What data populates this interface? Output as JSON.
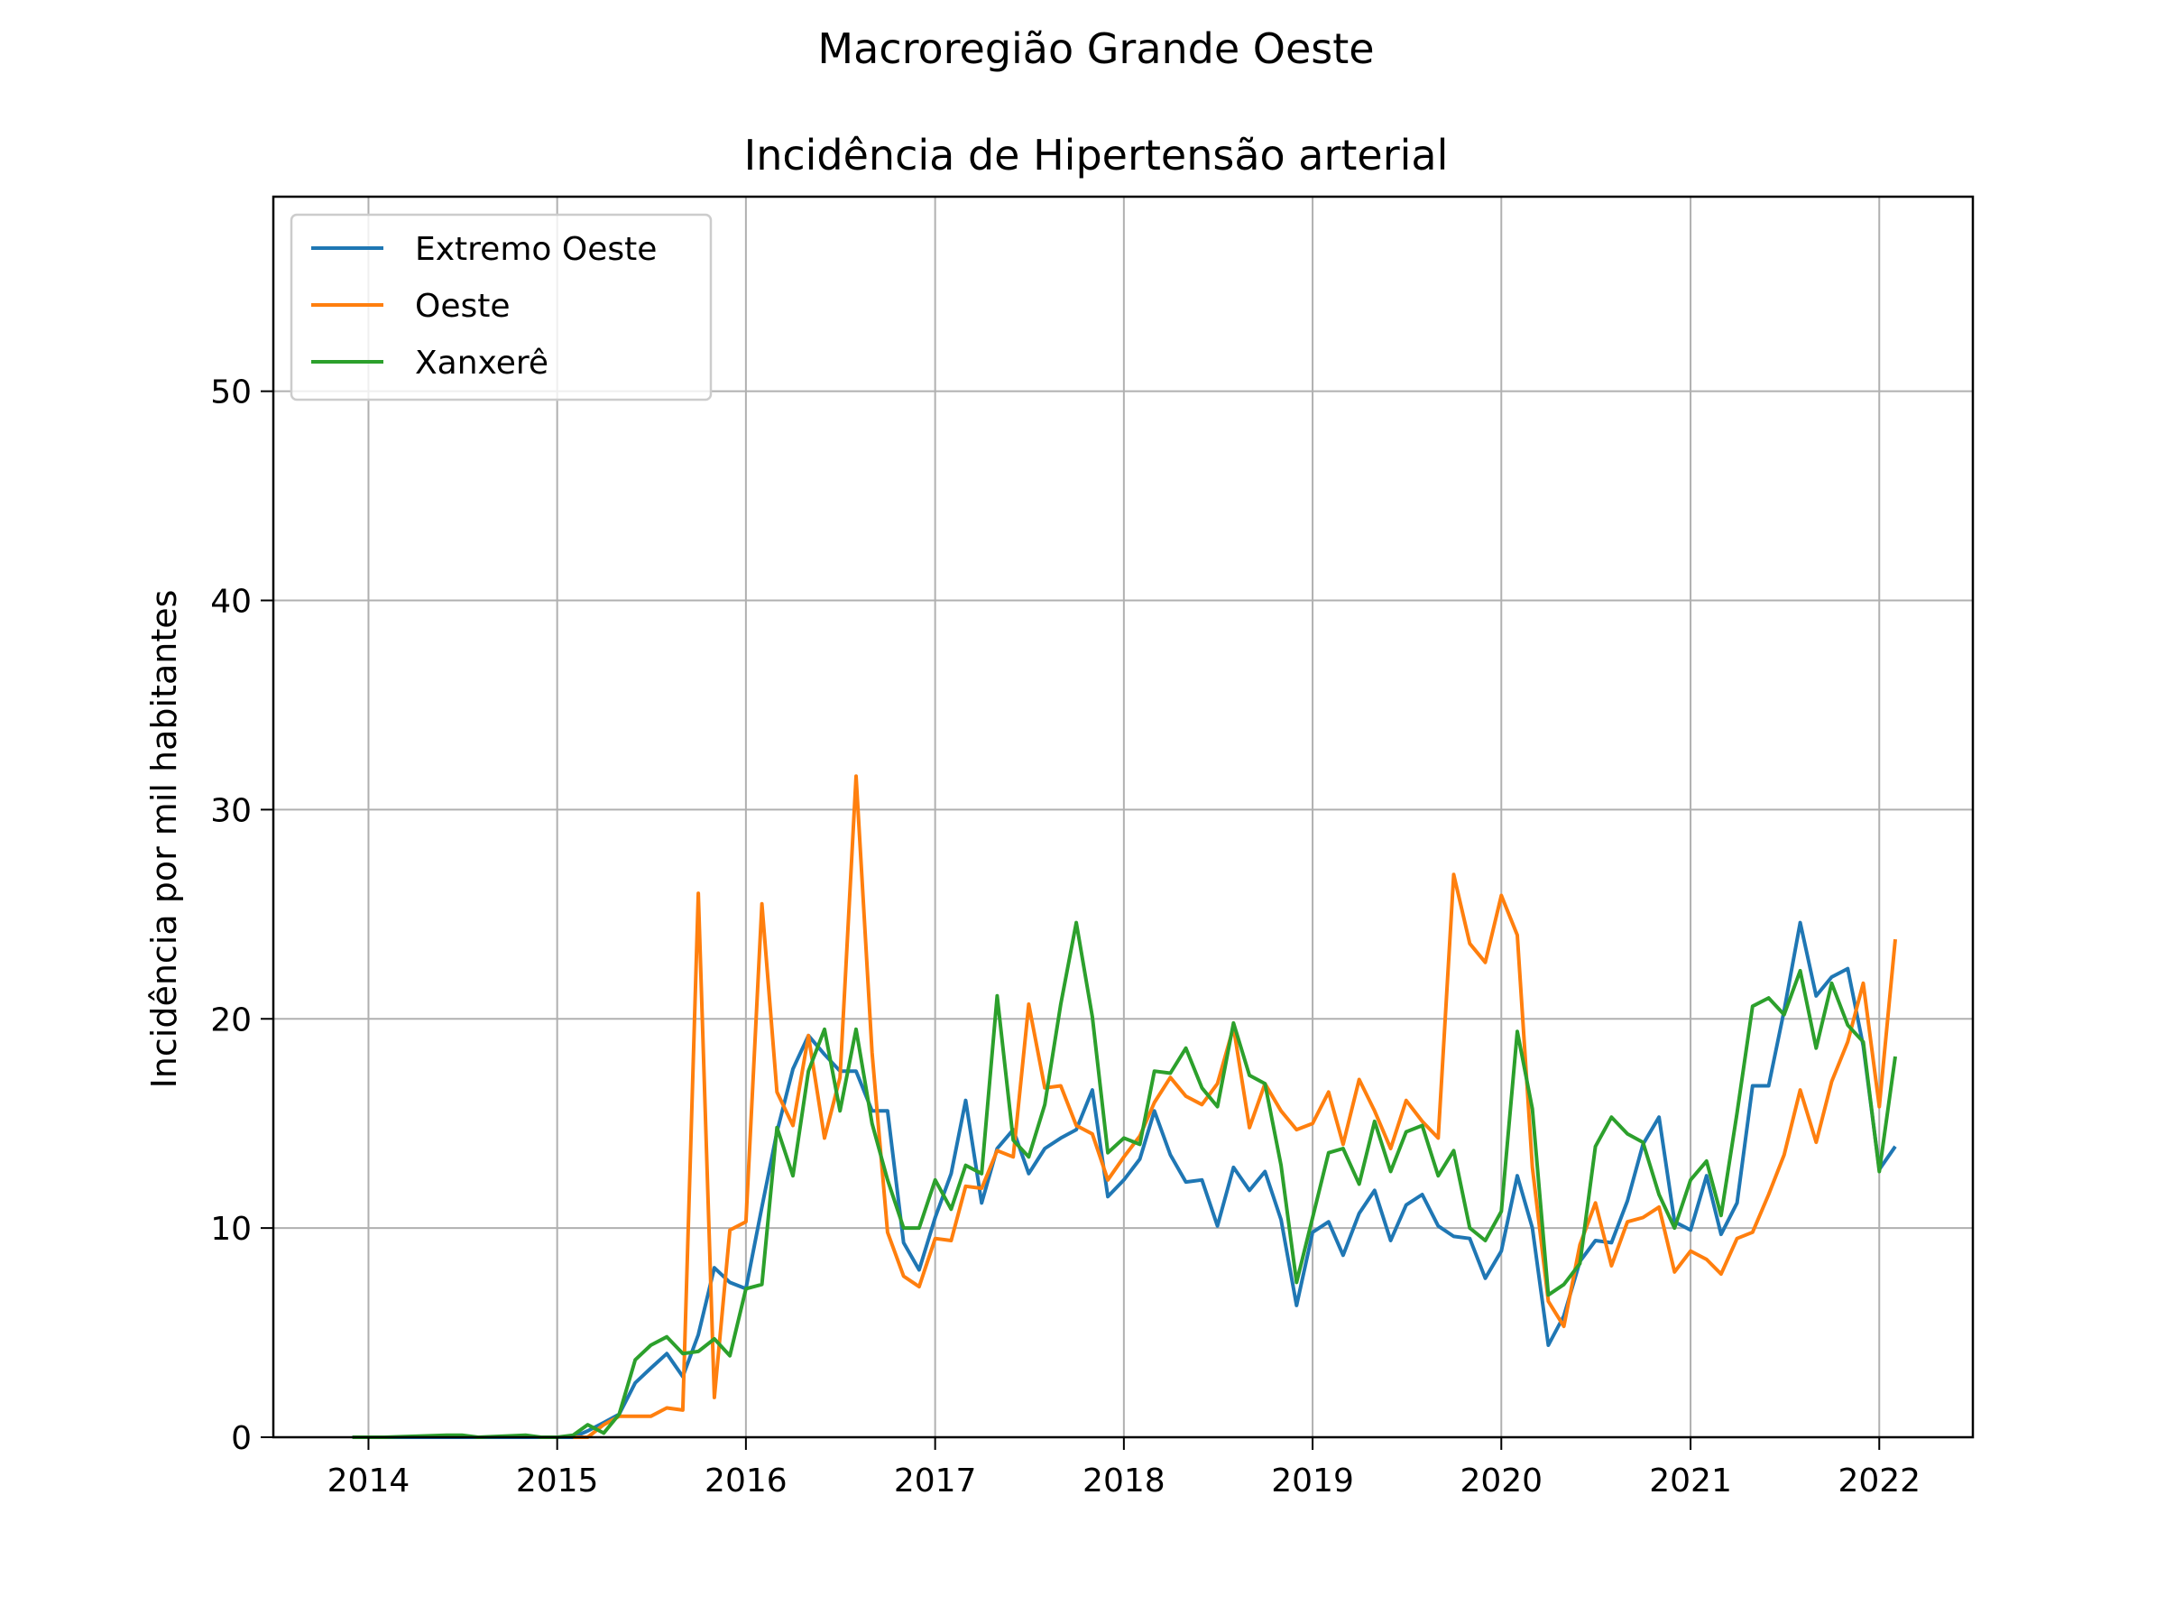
{
  "chart_data": {
    "type": "line",
    "suptitle": "Macroregião Grande Oeste",
    "title": "Incidência de Hipertensão arterial",
    "xlabel": "",
    "ylabel": "Incidência por mil habitantes",
    "xlim": [
      "2013-07-01",
      "2022-07-01"
    ],
    "ylim": [
      0,
      59.3
    ],
    "x_ticks": [
      "2014",
      "2015",
      "2016",
      "2017",
      "2018",
      "2019",
      "2020",
      "2021",
      "2022"
    ],
    "y_ticks": [
      "0",
      "10",
      "20",
      "30",
      "40",
      "50"
    ],
    "grid": true,
    "legend_position": "upper-left",
    "series": [
      {
        "name": "Extremo Oeste",
        "color": "#1f77b4",
        "points": [
          [
            "2013-12-01",
            0
          ],
          [
            "2014-01-01",
            0
          ],
          [
            "2014-02-01",
            0
          ],
          [
            "2014-06-01",
            0
          ],
          [
            "2014-07-01",
            0
          ],
          [
            "2014-08-01",
            0
          ],
          [
            "2014-11-01",
            0
          ],
          [
            "2014-12-01",
            0
          ],
          [
            "2015-01-01",
            0
          ],
          [
            "2015-02-01",
            0
          ],
          [
            "2015-03-01",
            0.3
          ],
          [
            "2015-04-01",
            0.7
          ],
          [
            "2015-05-01",
            1.1
          ],
          [
            "2015-06-01",
            2.6
          ],
          [
            "2015-07-01",
            3.3
          ],
          [
            "2015-08-01",
            4.0
          ],
          [
            "2015-09-01",
            2.9
          ],
          [
            "2015-10-01",
            4.9
          ],
          [
            "2015-11-01",
            8.1
          ],
          [
            "2015-12-01",
            7.4
          ],
          [
            "2016-01-01",
            7.1
          ],
          [
            "2016-02-01",
            11.0
          ],
          [
            "2016-03-01",
            14.6
          ],
          [
            "2016-04-01",
            17.6
          ],
          [
            "2016-05-01",
            19.2
          ],
          [
            "2016-06-01",
            18.3
          ],
          [
            "2016-07-01",
            17.5
          ],
          [
            "2016-08-01",
            17.5
          ],
          [
            "2016-09-01",
            15.6
          ],
          [
            "2016-10-01",
            15.6
          ],
          [
            "2016-11-01",
            9.3
          ],
          [
            "2016-12-01",
            8.0
          ],
          [
            "2017-01-01",
            10.5
          ],
          [
            "2017-02-01",
            12.6
          ],
          [
            "2017-03-01",
            16.1
          ],
          [
            "2017-04-01",
            11.2
          ],
          [
            "2017-05-01",
            13.8
          ],
          [
            "2017-06-01",
            14.7
          ],
          [
            "2017-07-01",
            12.6
          ],
          [
            "2017-08-01",
            13.8
          ],
          [
            "2017-09-01",
            14.3
          ],
          [
            "2017-10-01",
            14.7
          ],
          [
            "2017-11-01",
            16.6
          ],
          [
            "2017-12-01",
            11.5
          ],
          [
            "2018-01-01",
            12.3
          ],
          [
            "2018-02-01",
            13.3
          ],
          [
            "2018-03-01",
            15.6
          ],
          [
            "2018-04-01",
            13.5
          ],
          [
            "2018-05-01",
            12.2
          ],
          [
            "2018-06-01",
            12.3
          ],
          [
            "2018-07-01",
            10.1
          ],
          [
            "2018-08-01",
            12.9
          ],
          [
            "2018-09-01",
            11.8
          ],
          [
            "2018-10-01",
            12.7
          ],
          [
            "2018-11-01",
            10.4
          ],
          [
            "2018-12-01",
            6.3
          ],
          [
            "2019-01-01",
            9.8
          ],
          [
            "2019-02-01",
            10.3
          ],
          [
            "2019-03-01",
            8.7
          ],
          [
            "2019-04-01",
            10.7
          ],
          [
            "2019-05-01",
            11.8
          ],
          [
            "2019-06-01",
            9.4
          ],
          [
            "2019-07-01",
            11.1
          ],
          [
            "2019-08-01",
            11.6
          ],
          [
            "2019-09-01",
            10.1
          ],
          [
            "2019-10-01",
            9.6
          ],
          [
            "2019-11-01",
            9.5
          ],
          [
            "2019-12-01",
            7.6
          ],
          [
            "2020-01-01",
            8.9
          ],
          [
            "2020-02-01",
            12.5
          ],
          [
            "2020-03-01",
            10.0
          ],
          [
            "2020-04-01",
            4.4
          ],
          [
            "2020-05-01",
            5.8
          ],
          [
            "2020-06-01",
            8.4
          ],
          [
            "2020-07-01",
            9.4
          ],
          [
            "2020-08-01",
            9.3
          ],
          [
            "2020-09-01",
            11.3
          ],
          [
            "2020-10-01",
            14.0
          ],
          [
            "2020-11-01",
            15.3
          ],
          [
            "2020-12-01",
            10.3
          ],
          [
            "2021-01-01",
            9.9
          ],
          [
            "2021-02-01",
            12.5
          ],
          [
            "2021-03-01",
            9.7
          ],
          [
            "2021-04-01",
            11.2
          ],
          [
            "2021-05-01",
            16.8
          ],
          [
            "2021-06-01",
            16.8
          ],
          [
            "2021-07-01",
            20.4
          ],
          [
            "2021-08-01",
            24.6
          ],
          [
            "2021-09-01",
            21.1
          ],
          [
            "2021-10-01",
            22.0
          ],
          [
            "2021-11-01",
            22.4
          ],
          [
            "2021-12-01",
            18.7
          ],
          [
            "2022-01-01",
            12.8
          ],
          [
            "2022-02-01",
            13.9
          ]
        ]
      },
      {
        "name": "Oeste",
        "color": "#ff7f0e",
        "points": [
          [
            "2015-02-01",
            0
          ],
          [
            "2015-03-01",
            0
          ],
          [
            "2015-04-01",
            0.6
          ],
          [
            "2015-05-01",
            1.0
          ],
          [
            "2015-06-01",
            1.0
          ],
          [
            "2015-07-01",
            1.0
          ],
          [
            "2015-08-01",
            1.4
          ],
          [
            "2015-09-01",
            1.3
          ],
          [
            "2015-10-01",
            26.0
          ],
          [
            "2015-11-01",
            1.9
          ],
          [
            "2015-12-01",
            9.9
          ],
          [
            "2016-01-01",
            10.3
          ],
          [
            "2016-02-01",
            25.5
          ],
          [
            "2016-03-01",
            16.5
          ],
          [
            "2016-04-01",
            14.9
          ],
          [
            "2016-05-01",
            19.2
          ],
          [
            "2016-06-01",
            14.3
          ],
          [
            "2016-07-01",
            17.2
          ],
          [
            "2016-08-01",
            31.6
          ],
          [
            "2016-09-01",
            18.4
          ],
          [
            "2016-10-01",
            9.8
          ],
          [
            "2016-11-01",
            7.7
          ],
          [
            "2016-12-01",
            7.2
          ],
          [
            "2017-01-01",
            9.5
          ],
          [
            "2017-02-01",
            9.4
          ],
          [
            "2017-03-01",
            12.0
          ],
          [
            "2017-04-01",
            11.9
          ],
          [
            "2017-05-01",
            13.7
          ],
          [
            "2017-06-01",
            13.4
          ],
          [
            "2017-07-01",
            20.7
          ],
          [
            "2017-08-01",
            16.7
          ],
          [
            "2017-09-01",
            16.8
          ],
          [
            "2017-10-01",
            14.9
          ],
          [
            "2017-11-01",
            14.5
          ],
          [
            "2017-12-01",
            12.3
          ],
          [
            "2018-01-01",
            13.4
          ],
          [
            "2018-02-01",
            14.4
          ],
          [
            "2018-03-01",
            16.0
          ],
          [
            "2018-04-01",
            17.2
          ],
          [
            "2018-05-01",
            16.3
          ],
          [
            "2018-06-01",
            15.9
          ],
          [
            "2018-07-01",
            16.9
          ],
          [
            "2018-08-01",
            19.6
          ],
          [
            "2018-09-01",
            14.8
          ],
          [
            "2018-10-01",
            16.9
          ],
          [
            "2018-11-01",
            15.6
          ],
          [
            "2018-12-01",
            14.7
          ],
          [
            "2019-01-01",
            15.0
          ],
          [
            "2019-02-01",
            16.5
          ],
          [
            "2019-03-01",
            14.0
          ],
          [
            "2019-04-01",
            17.1
          ],
          [
            "2019-05-01",
            15.6
          ],
          [
            "2019-06-01",
            13.8
          ],
          [
            "2019-07-01",
            16.1
          ],
          [
            "2019-08-01",
            15.1
          ],
          [
            "2019-09-01",
            14.3
          ],
          [
            "2019-10-01",
            26.9
          ],
          [
            "2019-11-01",
            23.6
          ],
          [
            "2019-12-01",
            22.7
          ],
          [
            "2020-01-01",
            25.9
          ],
          [
            "2020-02-01",
            24.0
          ],
          [
            "2020-03-01",
            12.9
          ],
          [
            "2020-04-01",
            6.5
          ],
          [
            "2020-05-01",
            5.3
          ],
          [
            "2020-06-01",
            9.2
          ],
          [
            "2020-07-01",
            11.2
          ],
          [
            "2020-08-01",
            8.2
          ],
          [
            "2020-09-01",
            10.3
          ],
          [
            "2020-10-01",
            10.5
          ],
          [
            "2020-11-01",
            11.0
          ],
          [
            "2020-12-01",
            7.9
          ],
          [
            "2021-01-01",
            8.9
          ],
          [
            "2021-02-01",
            8.5
          ],
          [
            "2021-03-01",
            7.8
          ],
          [
            "2021-04-01",
            9.5
          ],
          [
            "2021-05-01",
            9.8
          ],
          [
            "2021-06-01",
            11.6
          ],
          [
            "2021-07-01",
            13.5
          ],
          [
            "2021-08-01",
            16.6
          ],
          [
            "2021-09-01",
            14.1
          ],
          [
            "2021-10-01",
            17.0
          ],
          [
            "2021-11-01",
            18.9
          ],
          [
            "2021-12-01",
            21.7
          ],
          [
            "2022-01-01",
            15.8
          ],
          [
            "2022-02-01",
            23.8
          ]
        ]
      },
      {
        "name": "Xanxerê",
        "color": "#2ca02c",
        "points": [
          [
            "2013-12-01",
            0
          ],
          [
            "2014-01-01",
            0
          ],
          [
            "2014-02-01",
            0
          ],
          [
            "2014-06-01",
            0.1
          ],
          [
            "2014-07-01",
            0.1
          ],
          [
            "2014-08-01",
            0
          ],
          [
            "2014-11-01",
            0.1
          ],
          [
            "2014-12-01",
            0
          ],
          [
            "2015-01-01",
            0
          ],
          [
            "2015-02-01",
            0.1
          ],
          [
            "2015-03-01",
            0.6
          ],
          [
            "2015-04-01",
            0.2
          ],
          [
            "2015-05-01",
            1.1
          ],
          [
            "2015-06-01",
            3.7
          ],
          [
            "2015-07-01",
            4.4
          ],
          [
            "2015-08-01",
            4.8
          ],
          [
            "2015-09-01",
            4.0
          ],
          [
            "2015-10-01",
            4.1
          ],
          [
            "2015-11-01",
            4.7
          ],
          [
            "2015-12-01",
            3.9
          ],
          [
            "2016-01-01",
            7.1
          ],
          [
            "2016-02-01",
            7.3
          ],
          [
            "2016-03-01",
            14.8
          ],
          [
            "2016-04-01",
            12.5
          ],
          [
            "2016-05-01",
            17.5
          ],
          [
            "2016-06-01",
            19.5
          ],
          [
            "2016-07-01",
            15.6
          ],
          [
            "2016-08-01",
            19.5
          ],
          [
            "2016-09-01",
            15.0
          ],
          [
            "2016-10-01",
            12.3
          ],
          [
            "2016-11-01",
            10.0
          ],
          [
            "2016-12-01",
            10.0
          ],
          [
            "2017-01-01",
            12.3
          ],
          [
            "2017-02-01",
            10.9
          ],
          [
            "2017-03-01",
            13.0
          ],
          [
            "2017-04-01",
            12.6
          ],
          [
            "2017-05-01",
            21.1
          ],
          [
            "2017-06-01",
            14.2
          ],
          [
            "2017-07-01",
            13.4
          ],
          [
            "2017-08-01",
            15.9
          ],
          [
            "2017-09-01",
            20.7
          ],
          [
            "2017-10-01",
            24.6
          ],
          [
            "2017-11-01",
            20.1
          ],
          [
            "2017-12-01",
            13.6
          ],
          [
            "2018-01-01",
            14.3
          ],
          [
            "2018-02-01",
            14.0
          ],
          [
            "2018-03-01",
            17.5
          ],
          [
            "2018-04-01",
            17.4
          ],
          [
            "2018-05-01",
            18.6
          ],
          [
            "2018-06-01",
            16.7
          ],
          [
            "2018-07-01",
            15.8
          ],
          [
            "2018-08-01",
            19.8
          ],
          [
            "2018-09-01",
            17.3
          ],
          [
            "2018-10-01",
            16.9
          ],
          [
            "2018-11-01",
            13.0
          ],
          [
            "2018-12-01",
            7.4
          ],
          [
            "2019-01-01",
            10.5
          ],
          [
            "2019-02-01",
            13.6
          ],
          [
            "2019-03-01",
            13.8
          ],
          [
            "2019-04-01",
            12.1
          ],
          [
            "2019-05-01",
            15.1
          ],
          [
            "2019-06-01",
            12.7
          ],
          [
            "2019-07-01",
            14.6
          ],
          [
            "2019-08-01",
            14.9
          ],
          [
            "2019-09-01",
            12.5
          ],
          [
            "2019-10-01",
            13.7
          ],
          [
            "2019-11-01",
            10.0
          ],
          [
            "2019-12-01",
            9.4
          ],
          [
            "2020-01-01",
            10.8
          ],
          [
            "2020-02-01",
            19.4
          ],
          [
            "2020-03-01",
            15.7
          ],
          [
            "2020-04-01",
            6.8
          ],
          [
            "2020-05-01",
            7.3
          ],
          [
            "2020-06-01",
            8.3
          ],
          [
            "2020-07-01",
            13.9
          ],
          [
            "2020-08-01",
            15.3
          ],
          [
            "2020-09-01",
            14.5
          ],
          [
            "2020-10-01",
            14.1
          ],
          [
            "2020-11-01",
            11.6
          ],
          [
            "2020-12-01",
            10.0
          ],
          [
            "2021-01-01",
            12.3
          ],
          [
            "2021-02-01",
            13.2
          ],
          [
            "2021-03-01",
            10.6
          ],
          [
            "2021-04-01",
            15.5
          ],
          [
            "2021-05-01",
            20.6
          ],
          [
            "2021-06-01",
            21.0
          ],
          [
            "2021-07-01",
            20.2
          ],
          [
            "2021-08-01",
            22.3
          ],
          [
            "2021-09-01",
            18.6
          ],
          [
            "2021-10-01",
            21.7
          ],
          [
            "2021-11-01",
            19.7
          ],
          [
            "2021-12-01",
            18.9
          ],
          [
            "2022-01-01",
            12.7
          ],
          [
            "2022-02-01",
            18.2
          ]
        ]
      }
    ]
  }
}
